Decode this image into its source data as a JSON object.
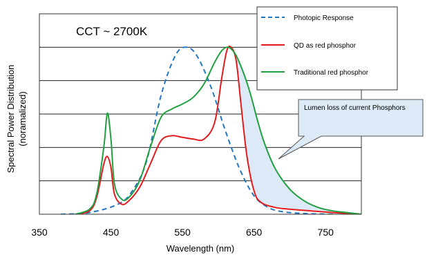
{
  "chart_data": {
    "type": "line",
    "title": "",
    "annotation_cct": "CCT ~ 2700K",
    "xlabel": "Wavelength (nm)",
    "ylabel_line1": "Spectral Power Distribution",
    "ylabel_line2": "(noramalized)",
    "xlim": [
      350,
      800
    ],
    "ylim": [
      0,
      1.2
    ],
    "xticks": [
      350,
      450,
      550,
      650,
      750
    ],
    "legend_position": "top-right",
    "shaded_region_label": "Lumen loss of current Phosphors",
    "colors": {
      "photopic": "#1f77c4",
      "qd": "#e41a1c",
      "traditional": "#20a040",
      "shade": "#dceaf7",
      "grid": "#222222"
    },
    "series": [
      {
        "name": "Photopic Response",
        "style": "dashed",
        "color": "#1f77c4",
        "x": [
          380,
          420,
          460,
          480,
          500,
          520,
          540,
          555,
          570,
          590,
          610,
          630,
          650,
          670,
          690,
          720,
          760
        ],
        "y": [
          0.0,
          0.01,
          0.06,
          0.14,
          0.32,
          0.71,
          0.95,
          1.0,
          0.95,
          0.76,
          0.5,
          0.27,
          0.11,
          0.04,
          0.015,
          0.004,
          0.0
        ]
      },
      {
        "name": "QD as red phosphor",
        "style": "solid",
        "color": "#e41a1c",
        "x": [
          400,
          420,
          430,
          440,
          445,
          450,
          455,
          465,
          475,
          490,
          505,
          520,
          535,
          550,
          565,
          580,
          595,
          605,
          612,
          618,
          625,
          632,
          640,
          650,
          660,
          680,
          700,
          730,
          760,
          800
        ],
        "y": [
          0.0,
          0.02,
          0.1,
          0.3,
          0.345,
          0.28,
          0.12,
          0.06,
          0.08,
          0.16,
          0.3,
          0.44,
          0.47,
          0.46,
          0.45,
          0.45,
          0.55,
          0.82,
          0.98,
          1.0,
          0.92,
          0.65,
          0.35,
          0.14,
          0.07,
          0.04,
          0.03,
          0.02,
          0.01,
          0.0
        ]
      },
      {
        "name": "Traditional red phosphor",
        "style": "solid",
        "color": "#20a040",
        "x": [
          400,
          420,
          430,
          440,
          445,
          450,
          455,
          465,
          475,
          490,
          505,
          520,
          535,
          550,
          565,
          580,
          595,
          605,
          612,
          618,
          625,
          635,
          645,
          655,
          665,
          680,
          700,
          720,
          740,
          760,
          780,
          800
        ],
        "y": [
          0.0,
          0.03,
          0.12,
          0.4,
          0.605,
          0.45,
          0.18,
          0.09,
          0.1,
          0.2,
          0.4,
          0.58,
          0.63,
          0.66,
          0.7,
          0.78,
          0.91,
          0.98,
          1.0,
          0.99,
          0.95,
          0.85,
          0.72,
          0.56,
          0.42,
          0.27,
          0.15,
          0.08,
          0.04,
          0.02,
          0.01,
          0.0
        ]
      }
    ]
  }
}
